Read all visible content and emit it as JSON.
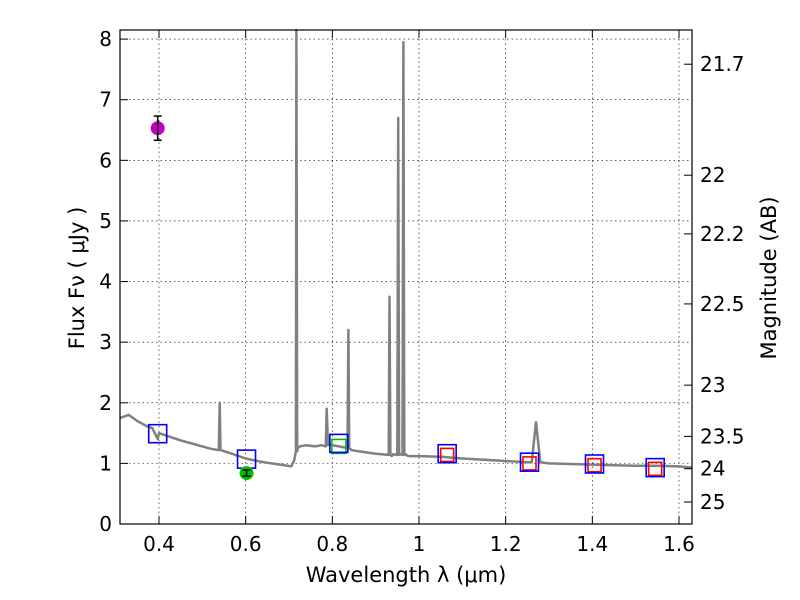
{
  "chart_data": {
    "type": "line",
    "xlabel": "Wavelength  λ (μm)",
    "ylabel": "Flux  Fν  ( μJy )",
    "ylabel_right": "Magnitude (AB)",
    "xlim": [
      0.31,
      1.63
    ],
    "ylim": [
      0,
      8.15
    ],
    "grid": true,
    "x_ticks": [
      0.4,
      0.6,
      0.8,
      1.0,
      1.2,
      1.4,
      1.6
    ],
    "x_tick_labels": [
      "0.4",
      "0.6",
      "0.8",
      "1",
      "1.2",
      "1.4",
      "1.6"
    ],
    "y_ticks": [
      0,
      1,
      2,
      3,
      4,
      5,
      6,
      7,
      8
    ],
    "y_tick_labels": [
      "0",
      "1",
      "2",
      "3",
      "4",
      "5",
      "6",
      "7",
      "8"
    ],
    "mag_ticks": [
      21.7,
      22,
      22.2,
      22.5,
      23,
      23.5,
      24,
      25
    ],
    "mag_tick_labels": [
      "21.7",
      "22",
      "22.2",
      "22.5",
      "23",
      "23.5",
      "24",
      "25"
    ],
    "spectrum": {
      "name": "model spectrum",
      "color": "#808080",
      "x": [
        0.31,
        0.33,
        0.35,
        0.37,
        0.385,
        0.39,
        0.397,
        0.4,
        0.42,
        0.45,
        0.48,
        0.5,
        0.52,
        0.538,
        0.54,
        0.542,
        0.56,
        0.6,
        0.62,
        0.65,
        0.68,
        0.705,
        0.712,
        0.716,
        0.717,
        0.719,
        0.72,
        0.725,
        0.74,
        0.76,
        0.775,
        0.785,
        0.787,
        0.79,
        0.795,
        0.8,
        0.815,
        0.83,
        0.835,
        0.837,
        0.839,
        0.845,
        0.86,
        0.9,
        0.93,
        0.932,
        0.934,
        0.937,
        0.94,
        0.95,
        0.952,
        0.954,
        0.957,
        0.962,
        0.964,
        0.966,
        0.969,
        0.975,
        1.0,
        1.05,
        1.1,
        1.15,
        1.2,
        1.25,
        1.26,
        1.27,
        1.28,
        1.3,
        1.35,
        1.4,
        1.45,
        1.5,
        1.55,
        1.6,
        1.63
      ],
      "y": [
        1.75,
        1.8,
        1.7,
        1.62,
        1.58,
        1.5,
        1.4,
        1.5,
        1.45,
        1.38,
        1.32,
        1.28,
        1.24,
        1.22,
        2.0,
        1.22,
        1.18,
        1.08,
        1.05,
        1.01,
        0.98,
        0.95,
        1.05,
        1.2,
        8.15,
        1.2,
        1.25,
        1.28,
        1.3,
        1.28,
        1.3,
        1.28,
        1.9,
        1.3,
        1.32,
        1.3,
        1.28,
        1.26,
        1.25,
        3.2,
        1.25,
        1.22,
        1.2,
        1.16,
        1.14,
        3.75,
        1.14,
        1.12,
        1.15,
        1.14,
        6.7,
        1.14,
        1.15,
        1.14,
        7.95,
        1.14,
        1.15,
        1.12,
        1.12,
        1.11,
        1.08,
        1.06,
        1.04,
        1.02,
        1.02,
        1.68,
        1.02,
        1.0,
        0.99,
        0.98,
        0.97,
        0.96,
        0.96,
        0.95,
        0.93
      ]
    },
    "observed_points": [
      {
        "name": "observed (magenta)",
        "x": 0.397,
        "y": 6.53,
        "yerr": 0.2,
        "color": "#bf00bf"
      },
      {
        "name": "observed (green)",
        "x": 0.602,
        "y": 0.84,
        "yerr": 0.05,
        "color": "#00bf00"
      }
    ],
    "model_blue_squares": {
      "color": "#0000ff",
      "x": [
        0.397,
        0.602,
        0.815,
        1.065,
        1.255,
        1.405,
        1.545
      ],
      "y": [
        1.49,
        1.07,
        1.33,
        1.16,
        1.02,
        0.99,
        0.93
      ]
    },
    "model_green_squares": {
      "color": "#00bf00",
      "x": [
        0.815
      ],
      "y": [
        1.28
      ]
    },
    "model_red_squares": {
      "color": "#ff0000",
      "x": [
        1.065,
        1.255,
        1.405,
        1.545
      ],
      "y": [
        1.14,
        1.0,
        0.97,
        0.91
      ]
    }
  }
}
